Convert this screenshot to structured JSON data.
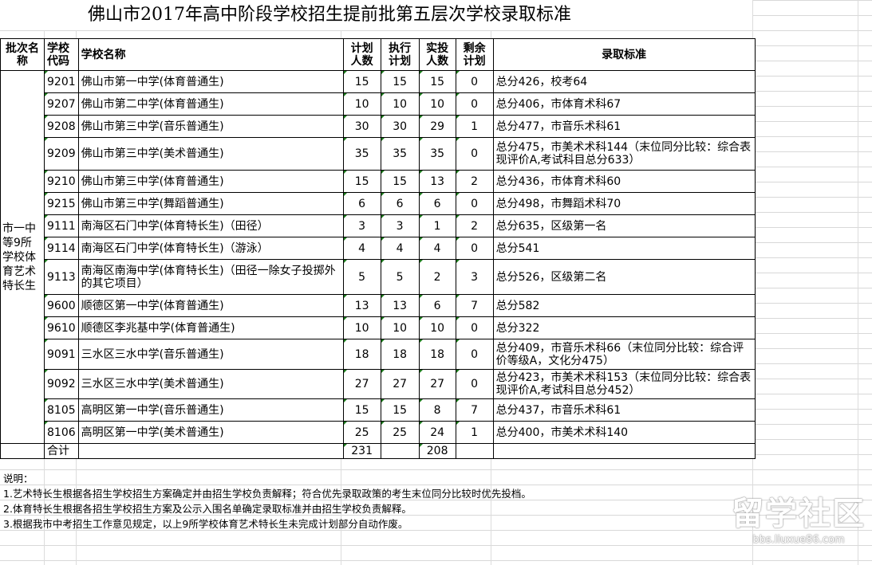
{
  "title": "佛山市2017年高中阶段学校招生提前批第五层次学校录取标准",
  "headers": {
    "batch": "批次名称",
    "code": "学校代码",
    "name": "学校名称",
    "plan": "计划人数",
    "exec": "执行计划",
    "actual": "实投人数",
    "remain": "剩余计划",
    "criteria": "录取标准"
  },
  "batch_name": "市一中等9所学校体育艺术特长生",
  "rows": [
    {
      "code": "9201",
      "name": "佛山市第一中学(体育普通生)",
      "plan": "15",
      "exec": "15",
      "actual": "15",
      "remain": "0",
      "criteria": "总分426，校考64"
    },
    {
      "code": "9207",
      "name": "佛山市第二中学(体育普通生)",
      "plan": "10",
      "exec": "10",
      "actual": "10",
      "remain": "0",
      "criteria": "总分406，市体育术科67"
    },
    {
      "code": "9208",
      "name": "佛山市第三中学(音乐普通生)",
      "plan": "30",
      "exec": "30",
      "actual": "29",
      "remain": "1",
      "criteria": "总分477，市音乐术科61"
    },
    {
      "code": "9209",
      "name": "佛山市第三中学(美术普通生)",
      "plan": "35",
      "exec": "35",
      "actual": "35",
      "remain": "0",
      "criteria": "总分475，市美术术科144（末位同分比较：综合表现评价A,考试科目总分633）"
    },
    {
      "code": "9210",
      "name": "佛山市第三中学(体育普通生)",
      "plan": "15",
      "exec": "15",
      "actual": "13",
      "remain": "2",
      "criteria": "总分436，市体育术科60"
    },
    {
      "code": "9215",
      "name": "佛山市第三中学(舞蹈普通生)",
      "plan": "6",
      "exec": "6",
      "actual": "6",
      "remain": "0",
      "criteria": "总分498，市舞蹈术科70"
    },
    {
      "code": "9111",
      "name": "南海区石门中学(体育特长生)（田径）",
      "plan": "3",
      "exec": "3",
      "actual": "1",
      "remain": "2",
      "criteria": "总分635，区级第一名"
    },
    {
      "code": "9114",
      "name": "南海区石门中学(体育特长生)（游泳）",
      "plan": "4",
      "exec": "4",
      "actual": "4",
      "remain": "0",
      "criteria": "总分541"
    },
    {
      "code": "9113",
      "name": "南海区南海中学(体育特长生)（田径一除女子投掷外的其它项目）",
      "plan": "5",
      "exec": "5",
      "actual": "2",
      "remain": "3",
      "criteria": "总分526，区级第二名"
    },
    {
      "code": "9600",
      "name": "顺德区第一中学(体育普通生)",
      "plan": "13",
      "exec": "13",
      "actual": "6",
      "remain": "7",
      "criteria": "总分582"
    },
    {
      "code": "9610",
      "name": "顺德区李兆基中学(体育普通生)",
      "plan": "10",
      "exec": "10",
      "actual": "10",
      "remain": "0",
      "criteria": "总分322"
    },
    {
      "code": "9091",
      "name": "三水区三水中学(音乐普通生)",
      "plan": "18",
      "exec": "18",
      "actual": "18",
      "remain": "0",
      "criteria": "总分409，市音乐术科66（末位同分比较：综合评价等级A，文化分475）"
    },
    {
      "code": "9092",
      "name": "三水区三水中学(美术普通生)",
      "plan": "27",
      "exec": "27",
      "actual": "27",
      "remain": "0",
      "criteria": "总分423，市美术术科153（末位同分比较：综合表现评价A,考试科目总分452）"
    },
    {
      "code": "8105",
      "name": "高明区第一中学(音乐普通生)",
      "plan": "15",
      "exec": "15",
      "actual": "8",
      "remain": "7",
      "criteria": "总分437，市音乐术科61"
    },
    {
      "code": "8106",
      "name": "高明区第一中学(美术普通生)",
      "plan": "25",
      "exec": "25",
      "actual": "24",
      "remain": "1",
      "criteria": "总分400，市美术术科140"
    }
  ],
  "total": {
    "label": "合计",
    "plan": "231",
    "actual": "208"
  },
  "notes": {
    "heading": "说明：",
    "items": [
      "1.艺术特长生根据各招生学校招生方案确定并由招生学校负责解释；符合优先录取政策的考生末位同分比较时优先投档。",
      "2.体育特长生根据各招生学校招生方案及公示入围名单确定录取标准并由招生学校负责解释。",
      "3.根据我市中考招生工作意见规定，以上9所学校体育艺术特长生未完成计划部分自动作废。"
    ]
  },
  "watermark": {
    "logo": "留学社区",
    "url": "bbs.liuxue86.com"
  }
}
